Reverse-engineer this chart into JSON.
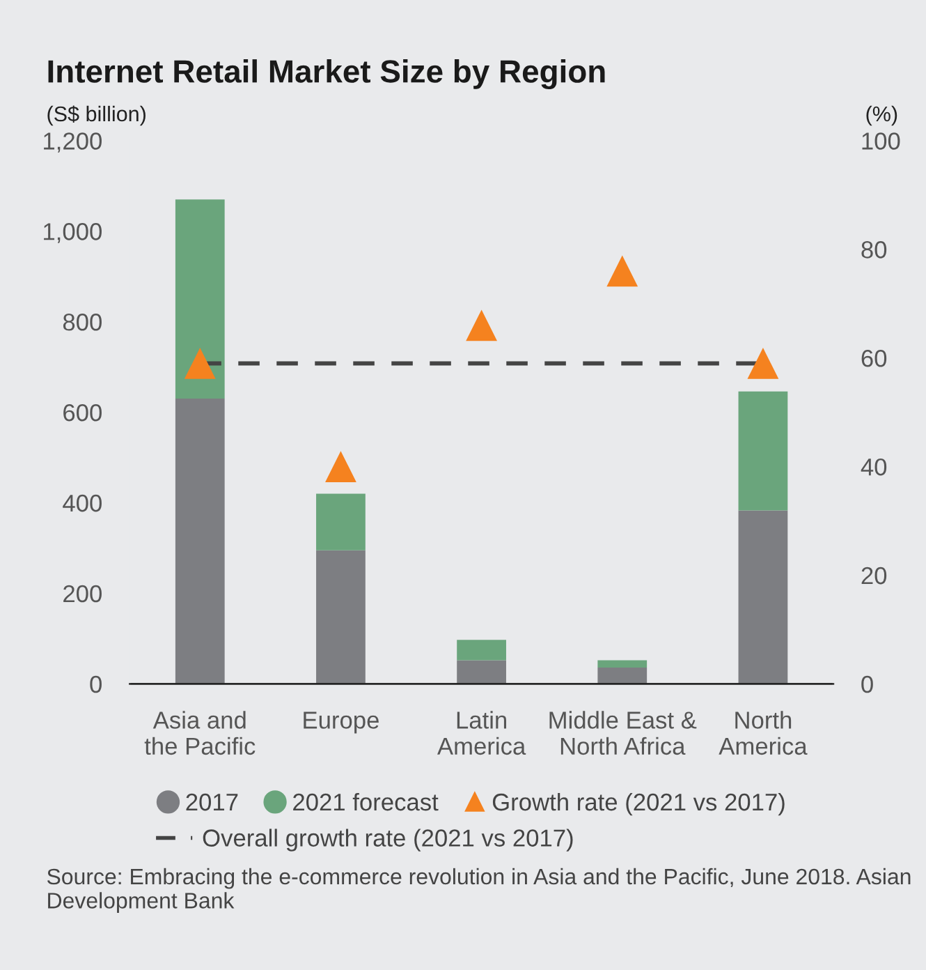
{
  "chart_data": {
    "type": "bar",
    "title": "Internet Retail Market Size by Region",
    "ylabel": "(S$ billion)",
    "y2label": "(%)",
    "categories": [
      "Asia and\nthe Pacific",
      "Europe",
      "Latin\nAmerica",
      "Middle East &\nNorth Africa",
      "North\nAmerica"
    ],
    "stacked": true,
    "series": [
      {
        "name": "2017",
        "color": "#7d7e82",
        "values": [
          630,
          295,
          52,
          36,
          383
        ]
      },
      {
        "name": "2021 forecast",
        "color": "#6aa57c",
        "values": [
          440,
          125,
          45,
          16,
          263
        ]
      },
      {
        "name": "Growth rate (2021 vs 2017)",
        "type": "scatter",
        "axis": "y2",
        "color": "#f5821f",
        "marker": "triangle",
        "values": [
          59,
          40,
          66,
          76,
          59
        ]
      }
    ],
    "ref_lines": [
      {
        "axis": "y2",
        "value": 59,
        "label": "Overall growth rate (2021 vs 2017)",
        "color": "#444444",
        "line_style": "dashed"
      }
    ],
    "ylim": [
      0,
      1200
    ],
    "yticks": [
      0,
      200,
      400,
      600,
      800,
      {
        "value": 1000,
        "label": "1,000"
      },
      {
        "value": 1200,
        "label": "1,200"
      }
    ],
    "y2lim": [
      0,
      100
    ],
    "y2ticks": [
      0,
      20,
      40,
      60,
      80,
      100
    ],
    "grid": false,
    "legend": "bottom",
    "annotations": [
      "Source: Embracing the e-commerce revolution in Asia and the Pacific, June 2018. Asian Development Bank"
    ]
  }
}
